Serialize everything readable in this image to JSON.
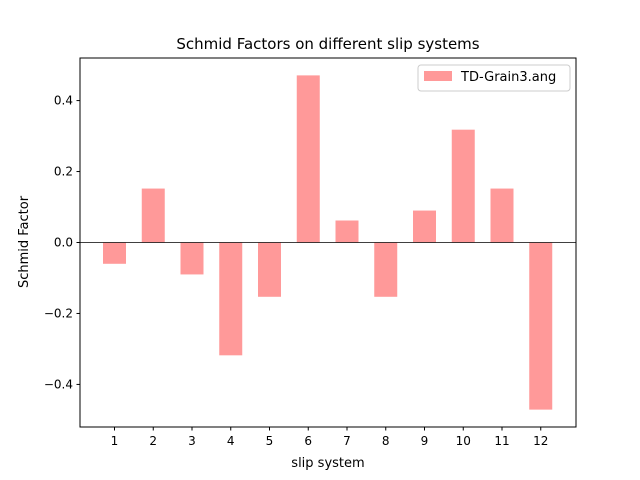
{
  "chart_data": {
    "type": "bar",
    "title": "Schmid Factors on different slip systems",
    "xlabel": "slip system",
    "ylabel": "Schmid Factor",
    "categories": [
      "1",
      "2",
      "3",
      "4",
      "5",
      "6",
      "7",
      "8",
      "9",
      "10",
      "11",
      "12"
    ],
    "series": [
      {
        "name": "TD-Grain3.ang",
        "color": "#ff9999",
        "values": [
          -0.06,
          0.152,
          -0.09,
          -0.318,
          -0.153,
          0.471,
          0.062,
          -0.153,
          0.09,
          0.318,
          0.152,
          -0.471
        ]
      }
    ],
    "ylim": [
      -0.52,
      0.52
    ],
    "yticks": [
      -0.4,
      -0.2,
      0.0,
      0.2,
      0.4
    ],
    "ytick_labels": [
      "−0.4",
      "−0.2",
      "0.0",
      "0.2",
      "0.4"
    ],
    "zero_line": true,
    "grid": false,
    "legend_position": "top-right"
  }
}
